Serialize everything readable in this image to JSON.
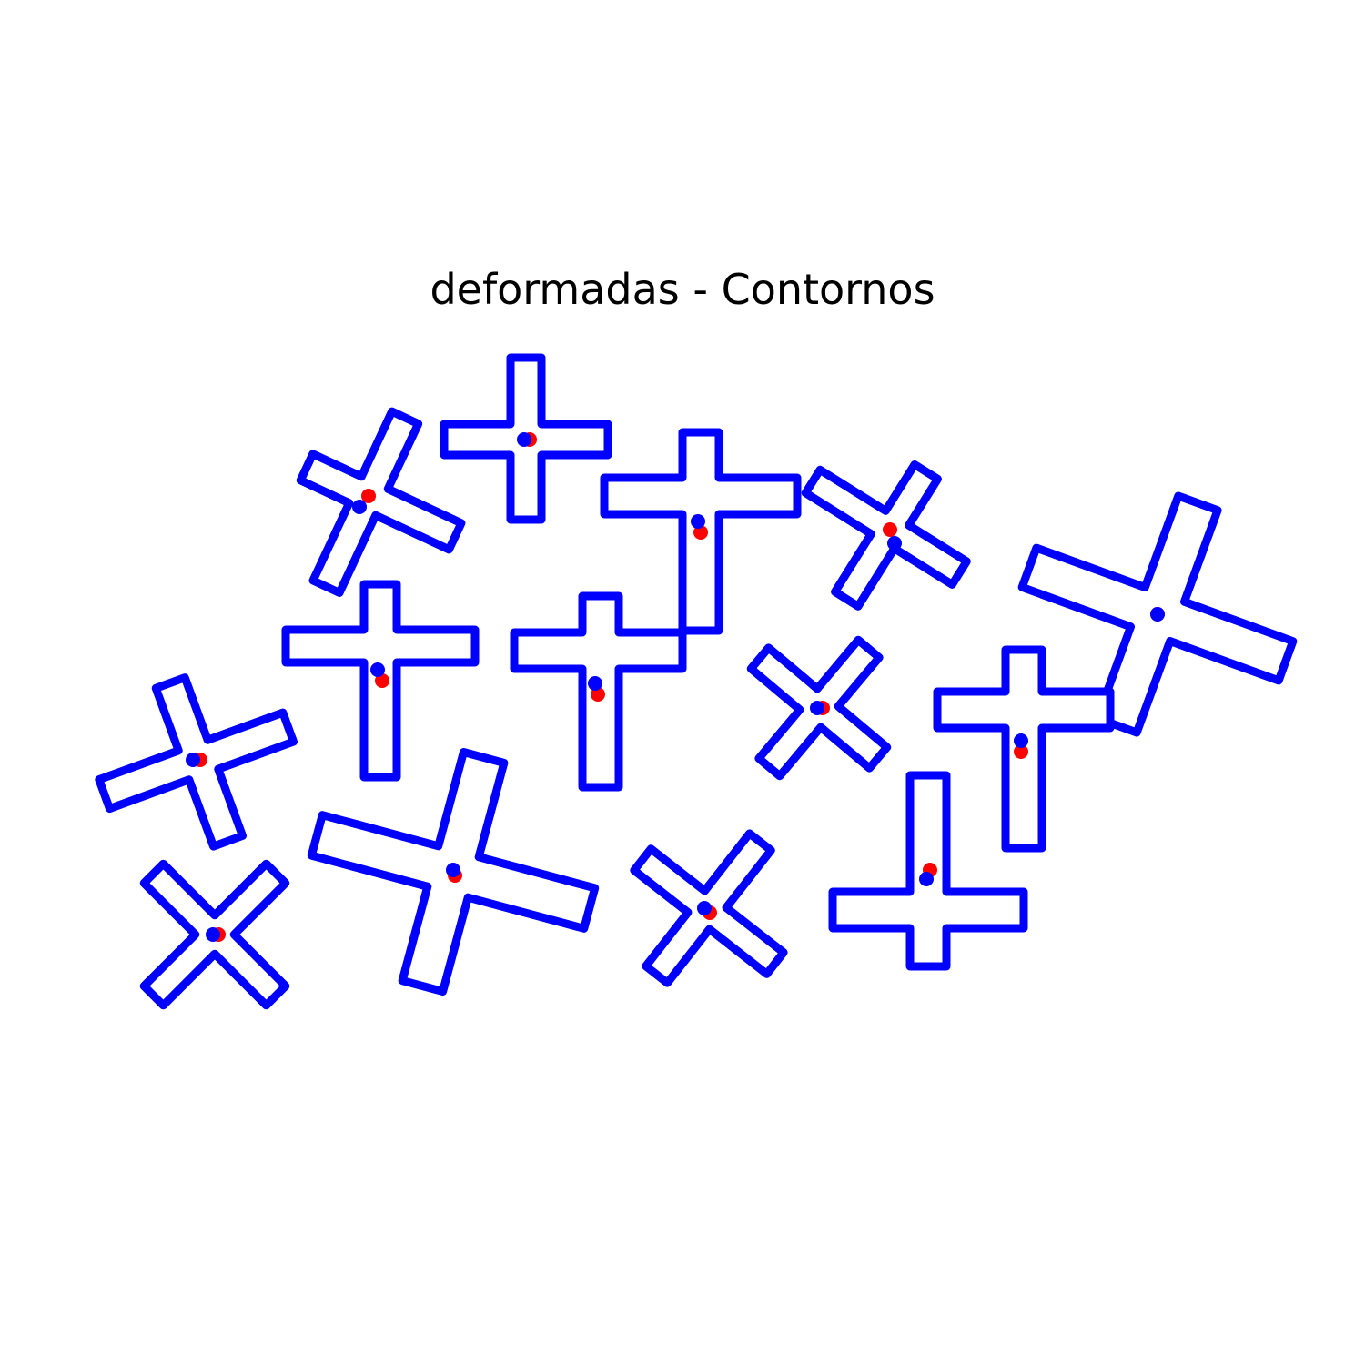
{
  "title": "deformadas - Contornos",
  "colors": {
    "contour": "#0000ff",
    "centroid": "#0000ff",
    "reference": "#ff0000",
    "background": "#ffffff"
  },
  "shapes": [
    {
      "name": "cross-shape"
    },
    {
      "name": "cross-shape"
    },
    {
      "name": "cross-shape"
    },
    {
      "name": "cross-shape"
    },
    {
      "name": "cross-shape"
    },
    {
      "name": "cross-shape"
    },
    {
      "name": "cross-shape"
    },
    {
      "name": "cross-shape"
    },
    {
      "name": "cross-shape"
    },
    {
      "name": "cross-shape"
    },
    {
      "name": "cross-shape"
    },
    {
      "name": "cross-shape"
    },
    {
      "name": "cross-shape"
    },
    {
      "name": "cross-shape"
    },
    {
      "name": "cross-shape"
    }
  ]
}
